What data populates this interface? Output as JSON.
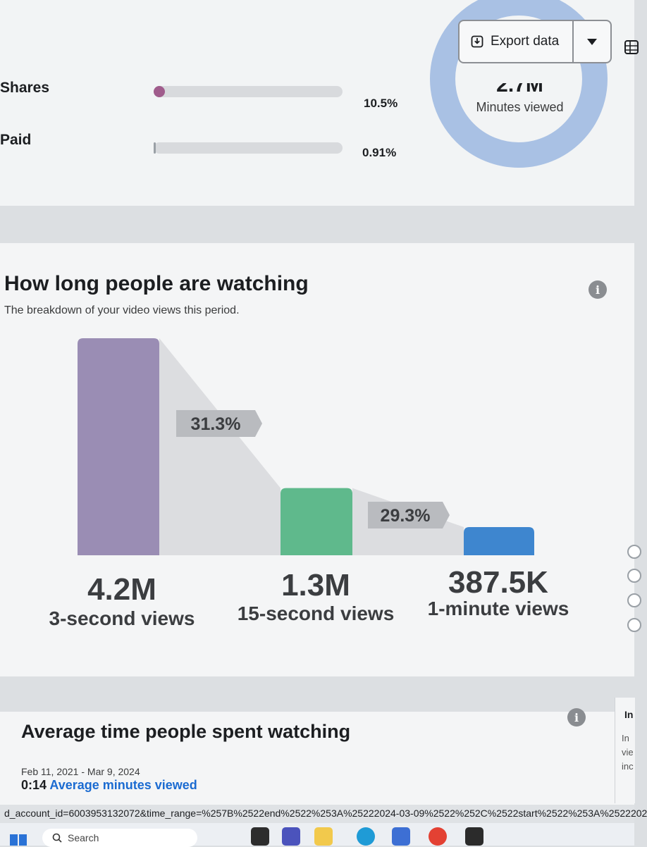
{
  "toolbar": {
    "export_label": "Export data",
    "export_icon": "download-icon",
    "caret_icon": "caret-down-icon",
    "table_icon": "table-icon"
  },
  "interaction_breakdown": {
    "rows": [
      {
        "label": "Shares",
        "percent": "10.5%",
        "fill": 0.06,
        "color": "#a05c8c"
      },
      {
        "label": "Paid",
        "percent": "0.91%",
        "fill": 0.005,
        "color": "#9aa0a6"
      }
    ]
  },
  "minutes_viewed": {
    "value": "2.7M",
    "caption": "Minutes viewed",
    "ring_color": "#a9c1e4"
  },
  "how_long": {
    "title": "How long people are watching",
    "subtitle": "The breakdown of your video views this period.",
    "info_icon": "info-icon"
  },
  "chart_data": {
    "type": "bar",
    "categories": [
      "3-second views",
      "15-second views",
      "1-minute views"
    ],
    "values": [
      4200000,
      1300000,
      387500
    ],
    "value_labels": [
      "4.2M",
      "1.3M",
      "387.5K"
    ],
    "colors": [
      "#9a8db4",
      "#5fb98c",
      "#3e86cf"
    ],
    "retention_labels": [
      "31.3%",
      "29.3%"
    ]
  },
  "avg_time": {
    "title": "Average time people spent watching",
    "date_range": "Feb 11, 2021 - Mar 9, 2024",
    "value": "0:14",
    "value_label": "Average minutes viewed",
    "info_icon": "info-icon"
  },
  "side_panel": {
    "heading": "In",
    "lines": [
      "In",
      "vie",
      "inc"
    ]
  },
  "address_bar": {
    "url": "d_account_id=6003953132072&time_range=%257B%2522end%2522%253A%25222024-03-09%2522%252C%2522start%2522%253A%2522202"
  },
  "taskbar": {
    "search_label": "Search"
  }
}
